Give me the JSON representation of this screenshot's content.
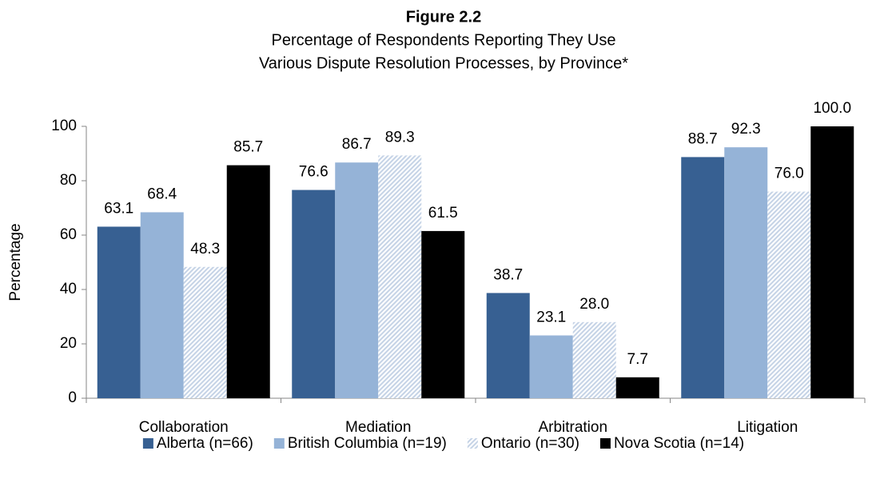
{
  "chart_data": {
    "type": "bar",
    "title": "Figure 2.2",
    "subtitle": [
      "Percentage of Respondents Reporting They Use",
      "Various Dispute Resolution Processes, by Province*"
    ],
    "y_label": "Percentage",
    "categories": [
      "Collaboration",
      "Mediation",
      "Arbitration",
      "Litigation"
    ],
    "series": [
      {
        "name": "Alberta (n=66)",
        "color": "#376092",
        "values": [
          63.1,
          76.6,
          38.7,
          88.7
        ],
        "value_labels": [
          "63.1",
          "76.6",
          "38.7",
          "88.7"
        ]
      },
      {
        "name": "British Columbia (n=19)",
        "color": "#95b3d7",
        "values": [
          68.4,
          86.7,
          23.1,
          92.3
        ],
        "value_labels": [
          "68.4",
          "86.7",
          "23.1",
          "92.3"
        ]
      },
      {
        "name": "Ontario (n=30)",
        "color": "#c5d3e6",
        "pattern": "hatch",
        "values": [
          48.3,
          89.3,
          28.0,
          76.0
        ],
        "value_labels": [
          "48.3",
          "89.3",
          "28.0",
          "76.0"
        ]
      },
      {
        "name": "Nova Scotia (n=14)",
        "color": "#000000",
        "values": [
          85.7,
          61.5,
          7.7,
          100
        ],
        "value_labels": [
          "85.7",
          "61.5",
          "7.7",
          "100.0"
        ]
      }
    ],
    "ylim": [
      0,
      100
    ],
    "yticks": [
      0,
      20,
      40,
      60,
      80,
      100
    ],
    "grid": false,
    "legend": "bottom"
  }
}
